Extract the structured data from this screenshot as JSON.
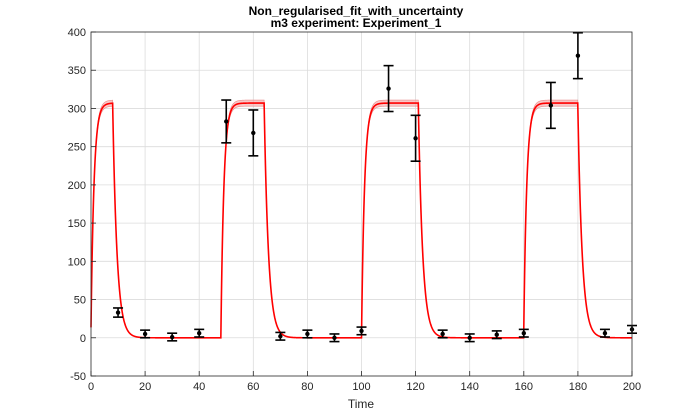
{
  "chart_data": {
    "type": "line",
    "title": [
      "Non_regularised_fit_with_uncertainty",
      "m3 experiment: Experiment_1"
    ],
    "xlabel": "Time",
    "ylabel": "",
    "xlim": [
      0,
      200
    ],
    "ylim": [
      -50,
      400
    ],
    "xticks": [
      0,
      20,
      40,
      60,
      80,
      100,
      120,
      140,
      160,
      180,
      200
    ],
    "yticks": [
      -50,
      0,
      50,
      100,
      150,
      200,
      250,
      300,
      350,
      400
    ],
    "grid": true,
    "legend": "none",
    "series": [
      {
        "kind": "fit-curve-with-band",
        "color": "#ff0000",
        "band_color": "#f4a3a3",
        "plateau": 307,
        "band_halfwidth": 4,
        "on_intervals": [
          [
            0,
            8
          ],
          [
            48,
            64
          ],
          [
            100,
            121
          ],
          [
            160,
            180
          ]
        ],
        "rise_tau": 1.1,
        "fall_tau": 1.6
      },
      {
        "kind": "data-with-errorbars",
        "color": "#000000",
        "x": [
          10,
          20,
          30,
          40,
          50,
          60,
          70,
          80,
          90,
          100,
          110,
          120,
          130,
          140,
          150,
          160,
          170,
          180,
          190,
          200
        ],
        "y": [
          33,
          5,
          1,
          6,
          283,
          268,
          2,
          5,
          0,
          9,
          326,
          261,
          5,
          0,
          4,
          6,
          304,
          369,
          6,
          11
        ],
        "err": [
          6,
          5,
          5,
          5,
          28,
          30,
          5,
          5,
          5,
          5,
          30,
          30,
          5,
          5,
          5,
          5,
          30,
          30,
          5,
          5
        ]
      }
    ]
  }
}
